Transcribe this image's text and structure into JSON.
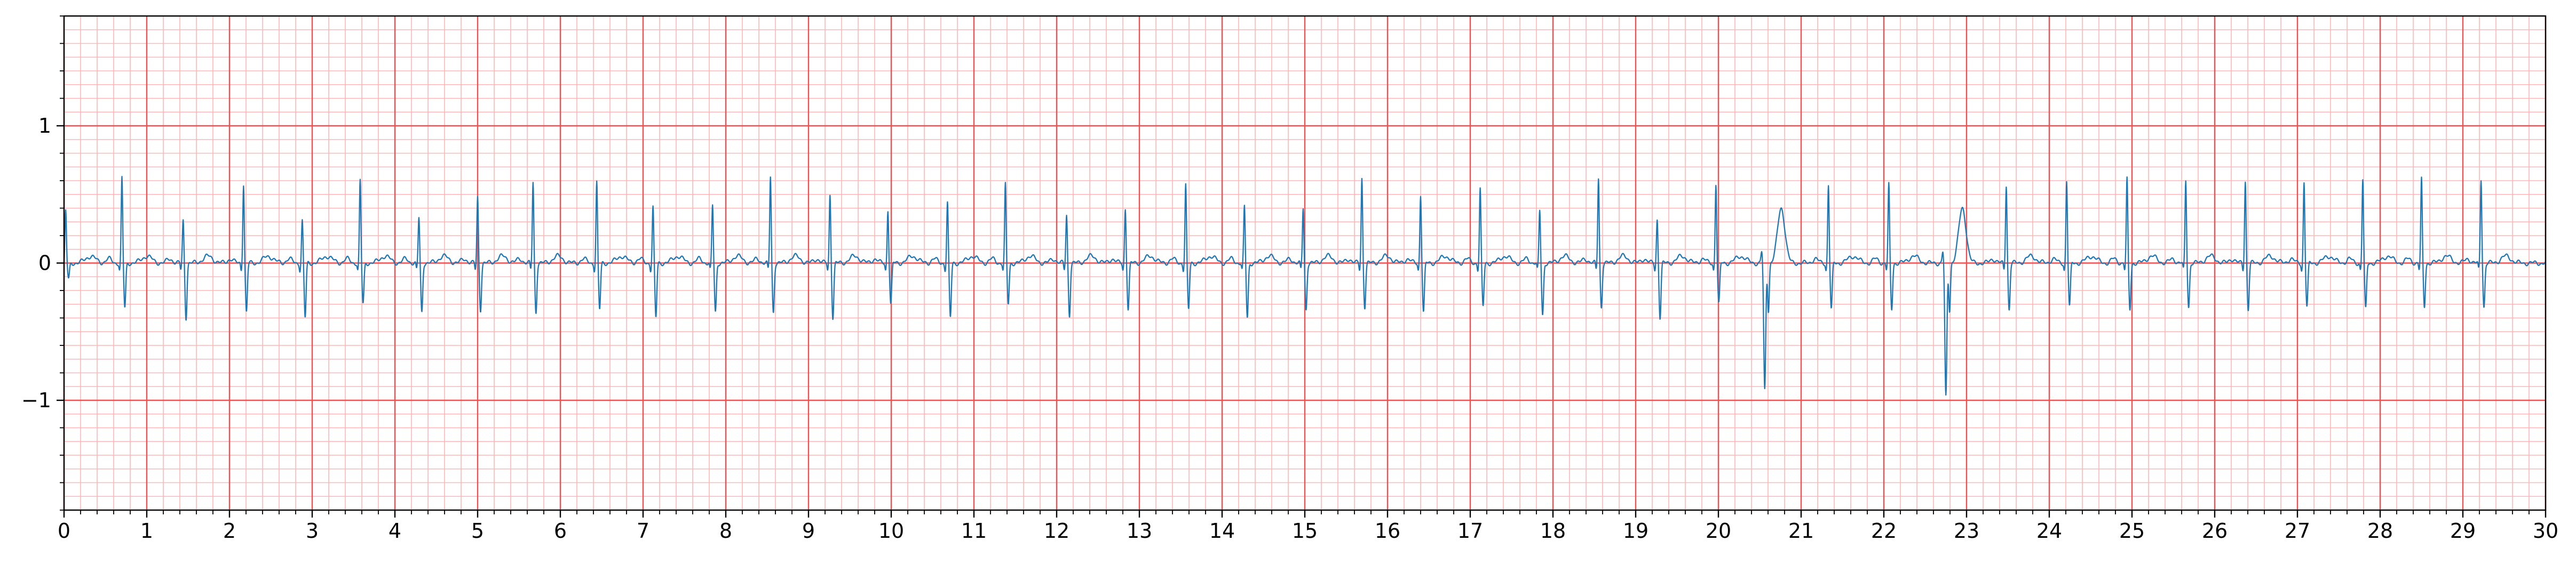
{
  "chart_data": {
    "type": "line",
    "title": "",
    "xlabel": "",
    "ylabel": "",
    "xlim": [
      0,
      30
    ],
    "ylim": [
      -1.8,
      1.8
    ],
    "x_ticks": [
      "0",
      "1",
      "2",
      "3",
      "4",
      "5",
      "6",
      "7",
      "8",
      "9",
      "10",
      "11",
      "12",
      "13",
      "14",
      "15",
      "16",
      "17",
      "18",
      "19",
      "20",
      "21",
      "22",
      "23",
      "24",
      "25",
      "26",
      "27",
      "28",
      "29",
      "30"
    ],
    "y_ticks": [
      {
        "value": 1,
        "label": "1"
      },
      {
        "value": 0,
        "label": "0"
      },
      {
        "value": -1,
        "label": "−1"
      }
    ],
    "grid": {
      "major": true,
      "minor": true,
      "major_step_x": 1,
      "major_step_y": 1,
      "minor_step_x": 0.2,
      "minor_step_y": 0.1
    },
    "legend": "none",
    "colors": {
      "trace": "#1f77b4",
      "major_grid": "#f05050",
      "minor_grid": "#ffb6b6",
      "axes": "#000000"
    },
    "series": [
      {
        "x": [
          0.02,
          0.7,
          1.44,
          2.17,
          2.88,
          3.58,
          4.29,
          5.0,
          5.67,
          6.44,
          7.12,
          7.84,
          8.54,
          9.26,
          9.96,
          10.68,
          11.38,
          12.12,
          12.83,
          13.56,
          14.27,
          14.98,
          15.69,
          16.4,
          17.12,
          17.84,
          18.55,
          19.26,
          19.97,
          20.56,
          21.33,
          22.06,
          22.75,
          23.48,
          24.21,
          24.94,
          25.65,
          26.37,
          27.08,
          27.79,
          28.5,
          29.22
        ],
        "y": [
          0.38,
          0.62,
          0.31,
          0.58,
          0.31,
          0.6,
          0.33,
          0.48,
          0.59,
          0.59,
          0.41,
          0.42,
          0.63,
          0.5,
          0.39,
          0.44,
          0.57,
          0.35,
          0.4,
          0.57,
          0.41,
          0.4,
          0.62,
          0.5,
          0.54,
          0.38,
          0.62,
          0.32,
          0.58,
          -0.93,
          0.57,
          0.57,
          -0.98,
          0.57,
          0.6,
          0.61,
          0.6,
          0.6,
          0.59,
          0.61,
          0.61,
          0.61
        ],
        "s": [
          -0.12,
          -0.33,
          -0.4,
          -0.36,
          -0.4,
          -0.3,
          -0.36,
          -0.34,
          -0.36,
          -0.34,
          -0.4,
          -0.36,
          -0.36,
          -0.4,
          -0.3,
          -0.4,
          -0.3,
          -0.38,
          -0.34,
          -0.34,
          -0.4,
          -0.34,
          -0.32,
          -0.36,
          -0.32,
          -0.38,
          -0.32,
          -0.4,
          -0.3,
          -0.35,
          -0.34,
          -0.34,
          -0.35,
          -0.34,
          -0.32,
          -0.34,
          -0.32,
          -0.34,
          -0.32,
          -0.34,
          -0.32,
          -0.32
        ],
        "t": [
          0.05,
          0.05,
          0.05,
          0.05,
          0.05,
          0.05,
          0.05,
          0.05,
          0.05,
          0.05,
          0.05,
          0.05,
          0.05,
          0.05,
          0.05,
          0.05,
          0.05,
          0.05,
          0.05,
          0.05,
          0.05,
          0.05,
          0.05,
          0.05,
          0.05,
          0.05,
          0.05,
          0.05,
          0.05,
          0.4,
          0.05,
          0.05,
          0.4,
          0.05,
          0.05,
          0.05,
          0.05,
          0.05,
          0.05,
          0.05,
          0.05,
          0.05
        ]
      }
    ]
  }
}
